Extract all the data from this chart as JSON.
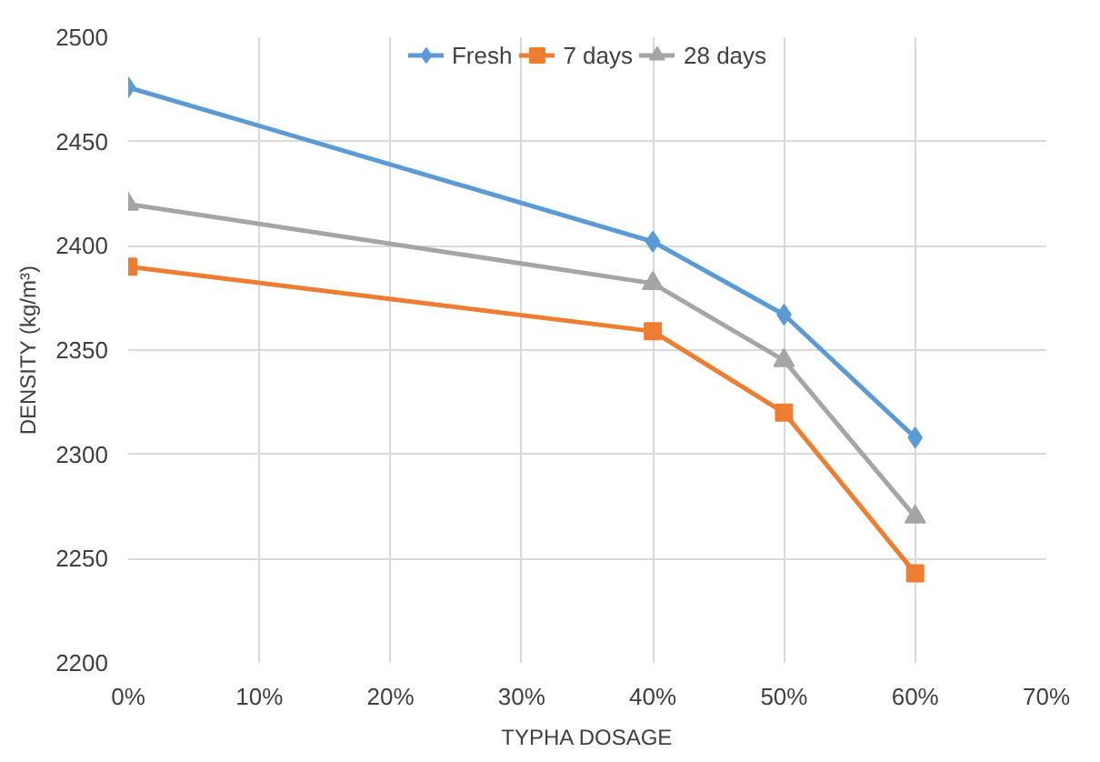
{
  "chart_data": {
    "type": "line",
    "xlabel": "TYPHA DOSAGE",
    "ylabel": "DENSITY (kg/m³)",
    "x": [
      0,
      40,
      50,
      60
    ],
    "series": [
      {
        "name": "Fresh",
        "color": "#5b9bd5",
        "marker": "diamond",
        "values": [
          2476,
          2402,
          2367,
          2308
        ]
      },
      {
        "name": "7 days",
        "color": "#ed7d31",
        "marker": "square",
        "values": [
          2390,
          2359,
          2320,
          2243
        ]
      },
      {
        "name": "28 days",
        "color": "#a5a5a5",
        "marker": "triangle",
        "values": [
          2420,
          2382,
          2345,
          2270
        ]
      }
    ],
    "xlim": [
      0,
      70
    ],
    "xticks": [
      {
        "value": 0,
        "label": "0%"
      },
      {
        "value": 10,
        "label": "10%"
      },
      {
        "value": 20,
        "label": "20%"
      },
      {
        "value": 30,
        "label": "30%"
      },
      {
        "value": 40,
        "label": "40%"
      },
      {
        "value": 50,
        "label": "50%"
      },
      {
        "value": 60,
        "label": "60%"
      },
      {
        "value": 70,
        "label": "70%"
      }
    ],
    "ylim": [
      2200,
      2500
    ],
    "yticks": [
      2200,
      2250,
      2300,
      2350,
      2400,
      2450,
      2500
    ],
    "grid": true,
    "legend": "top",
    "line_style": "solid"
  }
}
